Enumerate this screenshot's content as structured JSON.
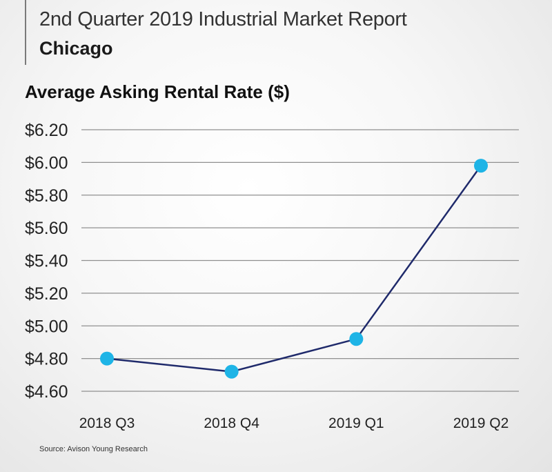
{
  "header": {
    "report_title": "2nd Quarter 2019 Industrial Market Report",
    "city": "Chicago"
  },
  "chart_data": {
    "type": "line",
    "title": "Average Asking Rental Rate ($)",
    "xlabel": "",
    "ylabel": "",
    "categories": [
      "2018 Q3",
      "2018 Q4",
      "2019 Q1",
      "2019 Q2"
    ],
    "values": [
      4.8,
      4.72,
      4.92,
      5.98
    ],
    "ylim": [
      4.6,
      6.2
    ],
    "yticks": [
      6.2,
      6.0,
      5.8,
      5.6,
      5.4,
      5.2,
      5.0,
      4.8,
      4.6
    ],
    "ytick_labels": [
      "$6.20",
      "$6.00",
      "$5.80",
      "$5.60",
      "$5.40",
      "$5.20",
      "$5.00",
      "$4.80",
      "$4.60"
    ],
    "grid": true,
    "legend": "none",
    "colors": {
      "line": "#1f2a6b",
      "marker": "#1eb4e6",
      "grid": "#8f8f8f"
    }
  },
  "footer": {
    "source": "Source: Avison Young Research"
  }
}
